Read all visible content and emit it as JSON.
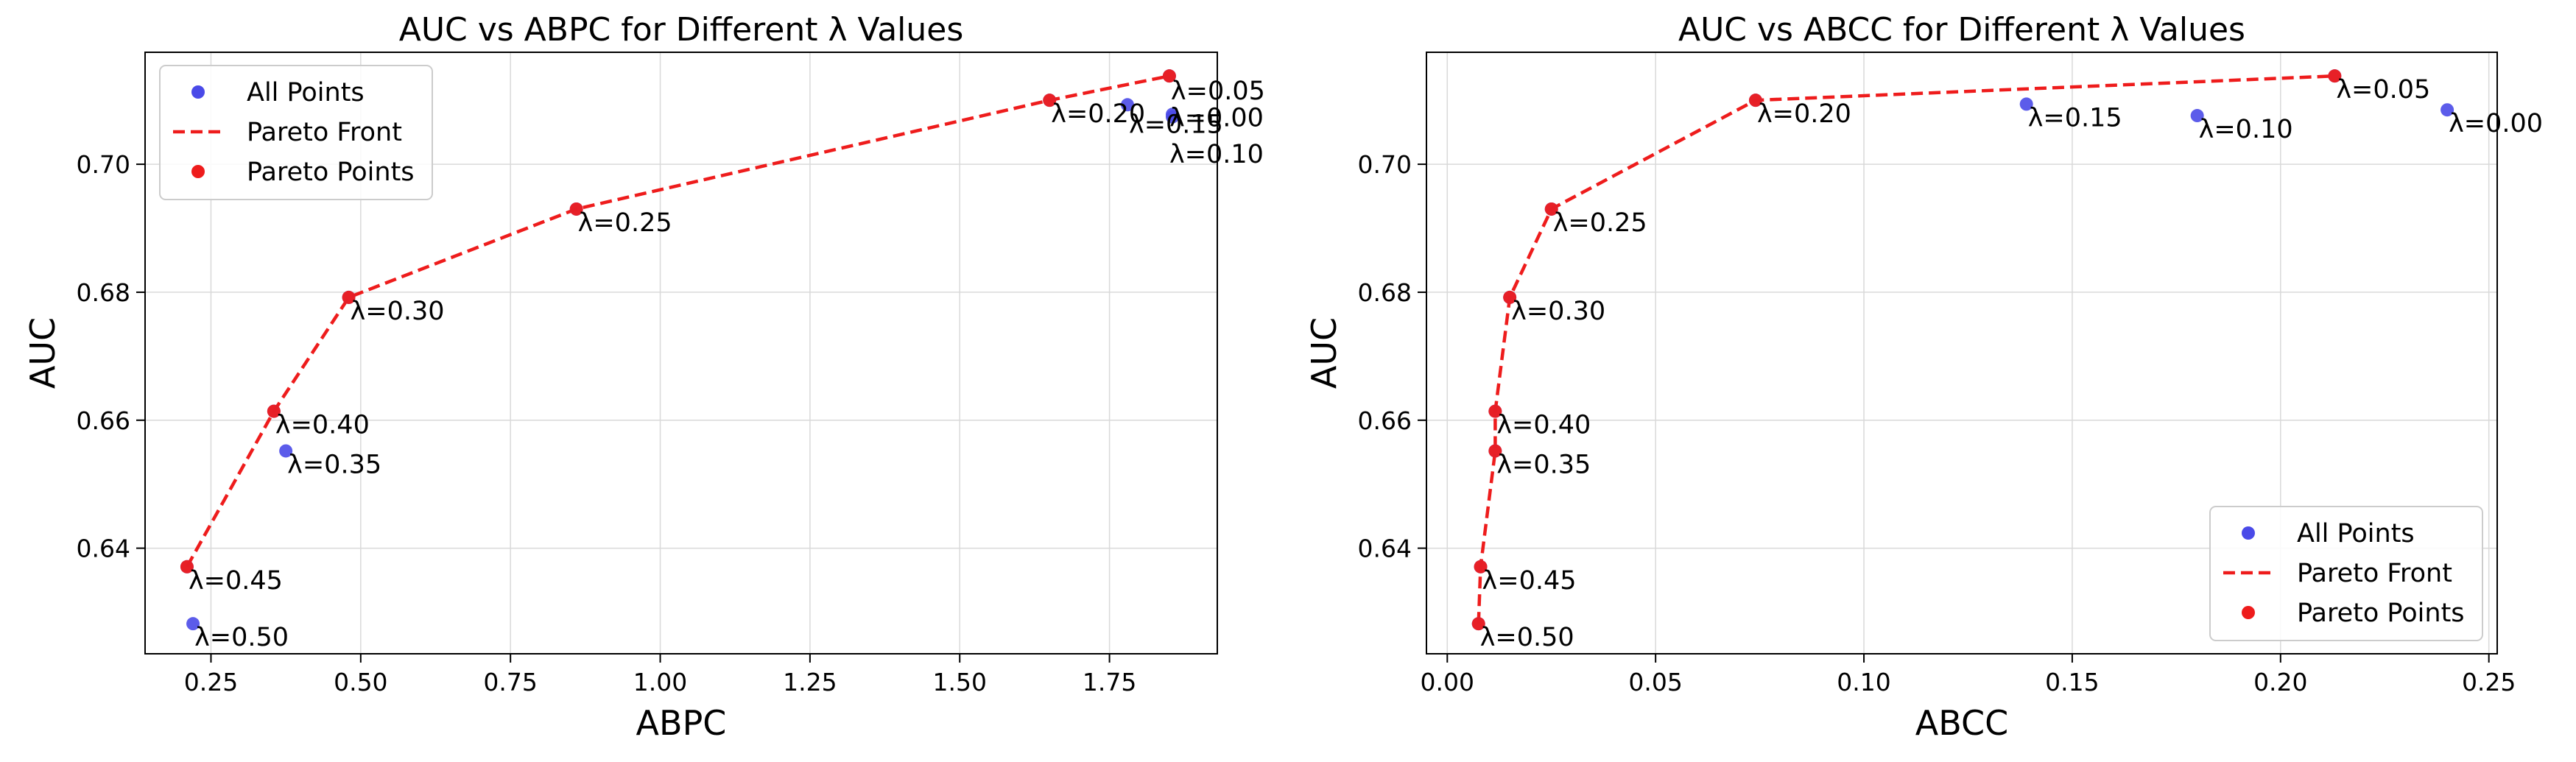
{
  "chart_data": [
    {
      "type": "scatter",
      "title": "AUC vs ABPC for Different λ Values",
      "xlabel": "ABPC",
      "ylabel": "AUC",
      "xlim": [
        0.14,
        1.93
      ],
      "ylim": [
        0.6235,
        0.7175
      ],
      "xticks": [
        0.25,
        0.5,
        0.75,
        1.0,
        1.25,
        1.5,
        1.75
      ],
      "xtick_labels": [
        "0.25",
        "0.50",
        "0.75",
        "1.00",
        "1.25",
        "1.50",
        "1.75"
      ],
      "yticks": [
        0.64,
        0.66,
        0.68,
        0.7
      ],
      "ytick_labels": [
        "0.64",
        "0.66",
        "0.68",
        "0.70"
      ],
      "grid": true,
      "legend_position": "top-left",
      "legend": [
        "All Points",
        "Pareto Front",
        "Pareto Points"
      ],
      "colors": {
        "all_points": "#4a4ae8",
        "pareto": "#ee1c1c"
      },
      "points": [
        {
          "label": "λ=0.00",
          "x": 1.855,
          "y": 0.7078
        },
        {
          "label": "λ=0.05",
          "x": 1.85,
          "y": 0.7138
        },
        {
          "label": "λ=0.10",
          "x": 1.855,
          "y": 0.7074
        },
        {
          "label": "λ=0.15",
          "x": 1.78,
          "y": 0.7093
        },
        {
          "label": "λ=0.20",
          "x": 1.65,
          "y": 0.71
        },
        {
          "label": "λ=0.25",
          "x": 0.86,
          "y": 0.693
        },
        {
          "label": "λ=0.30",
          "x": 0.48,
          "y": 0.6792
        },
        {
          "label": "λ=0.35",
          "x": 0.375,
          "y": 0.6552
        },
        {
          "label": "λ=0.40",
          "x": 0.355,
          "y": 0.6614
        },
        {
          "label": "λ=0.45",
          "x": 0.21,
          "y": 0.6371
        },
        {
          "label": "λ=0.50",
          "x": 0.22,
          "y": 0.6282
        }
      ],
      "pareto_front": [
        {
          "x": 0.21,
          "y": 0.6371
        },
        {
          "x": 0.355,
          "y": 0.6614
        },
        {
          "x": 0.48,
          "y": 0.6792
        },
        {
          "x": 0.86,
          "y": 0.693
        },
        {
          "x": 1.65,
          "y": 0.71
        },
        {
          "x": 1.85,
          "y": 0.7138
        }
      ]
    },
    {
      "type": "scatter",
      "title": "AUC vs ABCC for Different λ Values",
      "xlabel": "ABCC",
      "ylabel": "AUC",
      "xlim": [
        -0.005,
        0.252
      ],
      "ylim": [
        0.6235,
        0.7175
      ],
      "xticks": [
        0.0,
        0.05,
        0.1,
        0.15,
        0.2,
        0.25
      ],
      "xtick_labels": [
        "0.00",
        "0.05",
        "0.10",
        "0.15",
        "0.20",
        "0.25"
      ],
      "yticks": [
        0.64,
        0.66,
        0.68,
        0.7
      ],
      "ytick_labels": [
        "0.64",
        "0.66",
        "0.68",
        "0.70"
      ],
      "grid": true,
      "legend_position": "bottom-right",
      "legend": [
        "All Points",
        "Pareto Front",
        "Pareto Points"
      ],
      "colors": {
        "all_points": "#4a4ae8",
        "pareto": "#ee1c1c"
      },
      "points": [
        {
          "label": "λ=0.00",
          "x": 0.24,
          "y": 0.7085
        },
        {
          "label": "λ=0.05",
          "x": 0.213,
          "y": 0.7138
        },
        {
          "label": "λ=0.10",
          "x": 0.18,
          "y": 0.7076
        },
        {
          "label": "λ=0.15",
          "x": 0.139,
          "y": 0.7094
        },
        {
          "label": "λ=0.20",
          "x": 0.074,
          "y": 0.71
        },
        {
          "label": "λ=0.25",
          "x": 0.025,
          "y": 0.693
        },
        {
          "label": "λ=0.30",
          "x": 0.015,
          "y": 0.6792
        },
        {
          "label": "λ=0.35",
          "x": 0.0115,
          "y": 0.6552
        },
        {
          "label": "λ=0.40",
          "x": 0.0115,
          "y": 0.6614
        },
        {
          "label": "λ=0.45",
          "x": 0.008,
          "y": 0.6371
        },
        {
          "label": "λ=0.50",
          "x": 0.0075,
          "y": 0.6282
        }
      ],
      "pareto_front": [
        {
          "x": 0.0075,
          "y": 0.6282
        },
        {
          "x": 0.008,
          "y": 0.6371
        },
        {
          "x": 0.0115,
          "y": 0.6552
        },
        {
          "x": 0.0115,
          "y": 0.6614
        },
        {
          "x": 0.015,
          "y": 0.6792
        },
        {
          "x": 0.025,
          "y": 0.693
        },
        {
          "x": 0.074,
          "y": 0.71
        },
        {
          "x": 0.213,
          "y": 0.7138
        }
      ]
    }
  ]
}
